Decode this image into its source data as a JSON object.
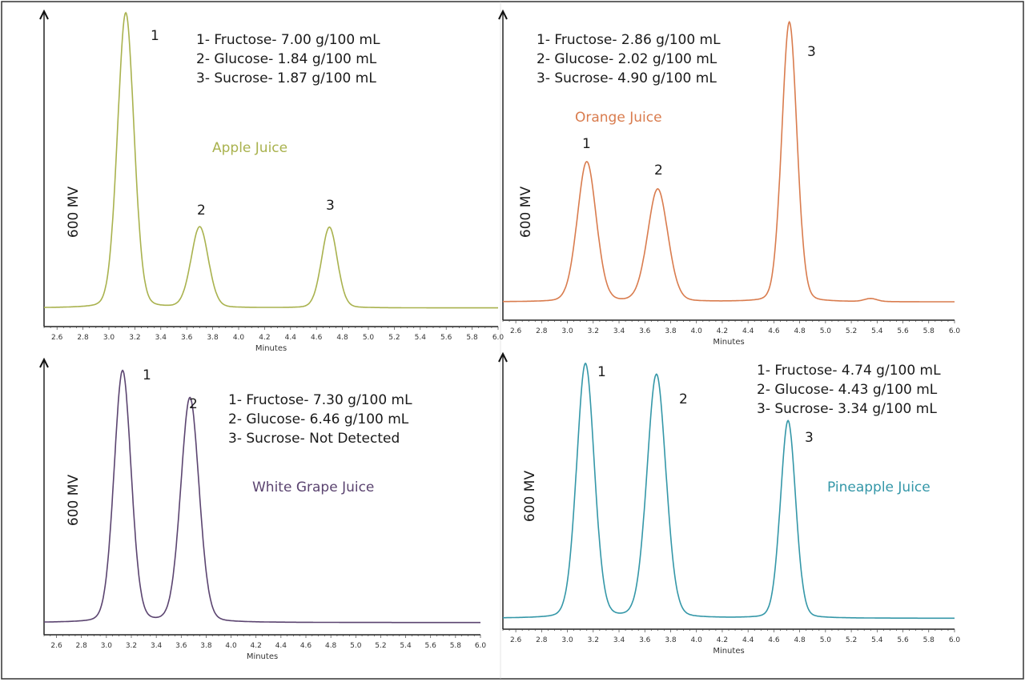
{
  "chart_data": [
    {
      "type": "line",
      "title": "Apple Juice",
      "color": "#a9b24e",
      "xlabel": "Minutes",
      "ylabel": "600 MV",
      "xlim": [
        2.5,
        6.0
      ],
      "xticks": [
        "2.6",
        "2.8",
        "3.0",
        "3.2",
        "3.4",
        "3.6",
        "3.8",
        "4.0",
        "4.2",
        "4.4",
        "4.6",
        "4.8",
        "5.0",
        "5.2",
        "5.4",
        "5.6",
        "5.8",
        "6.0"
      ],
      "grid": false,
      "baseline": 6,
      "peaks": [
        {
          "label": "1",
          "time": 3.13,
          "height": 95,
          "width": 0.065
        },
        {
          "label": "2",
          "time": 3.7,
          "height": 26,
          "width": 0.068
        },
        {
          "label": "3",
          "time": 4.7,
          "height": 26,
          "width": 0.062
        }
      ],
      "annotations": [
        "1- Fructose- 7.00 g/100 mL",
        "2- Glucose- 1.84 g/100 mL",
        "3- Sucrose- 1.87 g/100 mL"
      ]
    },
    {
      "type": "line",
      "title": "Orange Juice",
      "color": "#d97c4e",
      "xlabel": "Minutes",
      "ylabel": "600 MV",
      "xlim": [
        2.5,
        6.0
      ],
      "xticks": [
        "2.6",
        "2.8",
        "3.0",
        "3.2",
        "3.4",
        "3.6",
        "3.8",
        "4.0",
        "4.2",
        "4.4",
        "4.6",
        "4.8",
        "5.0",
        "5.2",
        "5.4",
        "5.6",
        "5.8",
        "6.0"
      ],
      "grid": false,
      "baseline": 6,
      "peaks": [
        {
          "label": "1",
          "time": 3.15,
          "height": 46,
          "width": 0.075
        },
        {
          "label": "2",
          "time": 3.7,
          "height": 37,
          "width": 0.08
        },
        {
          "label": "3",
          "time": 4.72,
          "height": 92,
          "width": 0.06
        },
        {
          "label": "",
          "time": 5.35,
          "height": 1,
          "width": 0.05
        }
      ],
      "annotations": [
        "1- Fructose- 2.86 g/100 mL",
        "2- Glucose- 2.02 g/100 mL",
        "3- Sucrose- 4.90 g/100 mL"
      ]
    },
    {
      "type": "line",
      "title": "White Grape Juice",
      "color": "#5b4470",
      "xlabel": "Minutes",
      "ylabel": "600 MV",
      "xlim": [
        2.5,
        6.0
      ],
      "xticks": [
        "2.6",
        "2.8",
        "3.0",
        "3.2",
        "3.4",
        "3.6",
        "3.8",
        "4.0",
        "4.2",
        "4.4",
        "4.6",
        "4.8",
        "5.0",
        "5.2",
        "5.4",
        "5.6",
        "5.8",
        "6.0"
      ],
      "grid": false,
      "baseline": 4.5,
      "peaks": [
        {
          "label": "1",
          "time": 3.13,
          "height": 93,
          "width": 0.07
        },
        {
          "label": "2",
          "time": 3.67,
          "height": 83,
          "width": 0.075
        }
      ],
      "annotations": [
        "1- Fructose- 7.30 g/100 mL",
        "2- Glucose- 6.46 g/100 mL",
        "3- Sucrose- Not Detected"
      ]
    },
    {
      "type": "line",
      "title": "Pineapple Juice",
      "color": "#3497a8",
      "xlabel": "Minutes",
      "ylabel": "600 MV",
      "xlim": [
        2.5,
        6.0
      ],
      "xticks": [
        "2.6",
        "2.8",
        "3.0",
        "3.2",
        "3.4",
        "3.6",
        "3.8",
        "4.0",
        "4.2",
        "4.4",
        "4.6",
        "4.8",
        "5.0",
        "5.2",
        "5.4",
        "5.6",
        "5.8",
        "6.0"
      ],
      "grid": false,
      "baseline": 4,
      "peaks": [
        {
          "label": "1",
          "time": 3.14,
          "height": 94,
          "width": 0.07
        },
        {
          "label": "2",
          "time": 3.69,
          "height": 90,
          "width": 0.075
        },
        {
          "label": "3",
          "time": 4.71,
          "height": 73,
          "width": 0.06
        }
      ],
      "annotations": [
        "1- Fructose- 4.74 g/100 mL",
        "2- Glucose- 4.43 g/100 mL",
        "3- Sucrose- 3.34 g/100 mL"
      ]
    }
  ]
}
